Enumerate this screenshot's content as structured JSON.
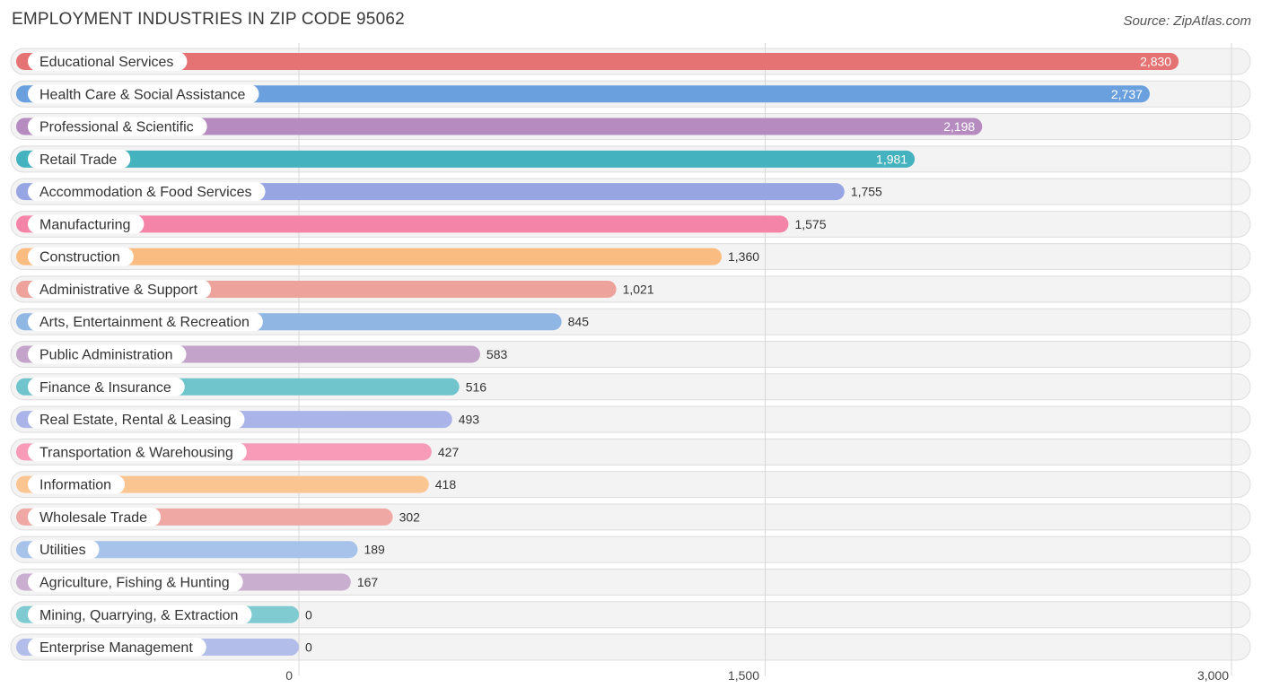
{
  "header": {
    "title": "EMPLOYMENT INDUSTRIES IN ZIP CODE 95062",
    "source": "Source: ZipAtlas.com"
  },
  "chart_data": {
    "type": "bar",
    "orientation": "horizontal",
    "title": "EMPLOYMENT INDUSTRIES IN ZIP CODE 95062",
    "categories": [
      "Educational Services",
      "Health Care & Social Assistance",
      "Professional & Scientific",
      "Retail Trade",
      "Accommodation & Food Services",
      "Manufacturing",
      "Construction",
      "Administrative & Support",
      "Arts, Entertainment & Recreation",
      "Public Administration",
      "Finance & Insurance",
      "Real Estate, Rental & Leasing",
      "Transportation & Warehousing",
      "Information",
      "Wholesale Trade",
      "Utilities",
      "Agriculture, Fishing & Hunting",
      "Mining, Quarrying, & Extraction",
      "Enterprise Management"
    ],
    "values": [
      2830,
      2737,
      2198,
      1981,
      1755,
      1575,
      1360,
      1021,
      845,
      583,
      516,
      493,
      427,
      418,
      302,
      189,
      167,
      0,
      0
    ],
    "value_labels": [
      "2,830",
      "2,737",
      "2,198",
      "1,981",
      "1,755",
      "1,575",
      "1,360",
      "1,021",
      "845",
      "583",
      "516",
      "493",
      "427",
      "418",
      "302",
      "189",
      "167",
      "0",
      "0"
    ],
    "colors": [
      "#e57373",
      "#6aa0de",
      "#b68bc0",
      "#45b3bf",
      "#98a5e3",
      "#f585a8",
      "#fbbc82",
      "#eda29b",
      "#90b6e4",
      "#c3a3c9",
      "#70c4cb",
      "#aab4e8",
      "#f79bb9",
      "#fbc591",
      "#f0a8a4",
      "#a7c3ea",
      "#c9aecf",
      "#7fcbd1",
      "#b3bdea"
    ],
    "xticks": [
      0,
      1500,
      3000
    ],
    "xtick_labels": [
      "0",
      "1,500",
      "3,000"
    ],
    "xlim": [
      0,
      3000
    ],
    "grid": true
  }
}
